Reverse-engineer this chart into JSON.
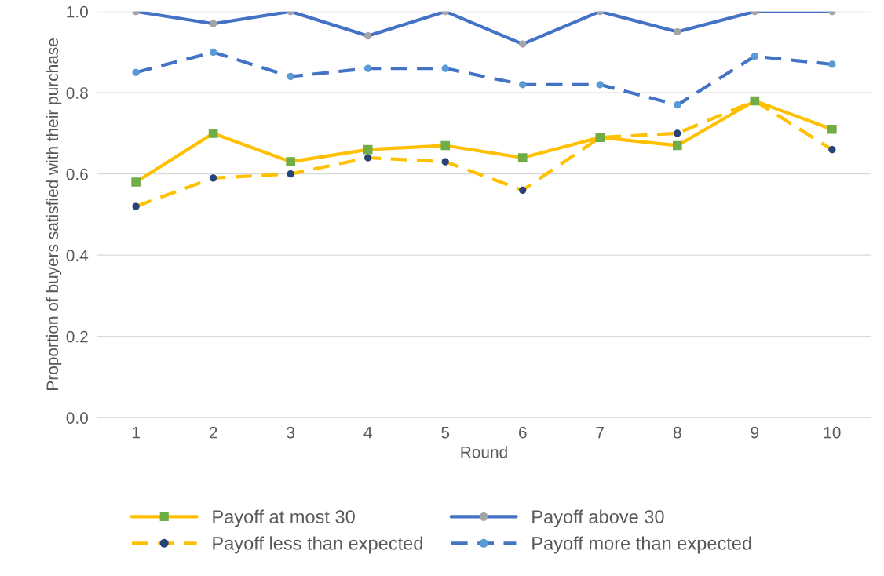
{
  "chart_data": {
    "type": "line",
    "xlabel": "Round",
    "ylabel": "Proportion of buyers satisfied with their purchase",
    "categories": [
      "1",
      "2",
      "3",
      "4",
      "5",
      "6",
      "7",
      "8",
      "9",
      "10"
    ],
    "series": [
      {
        "name": "Payoff at most 30",
        "color": "#ffc000",
        "line_style": "solid",
        "marker": "square",
        "colors": [
          "#70ad47",
          "#70ad47",
          "#70ad47",
          "#70ad47",
          "#70ad47",
          "#70ad47",
          "#70ad47",
          "#70ad47",
          "#70ad47",
          "#70ad47"
        ],
        "values": [
          0.58,
          0.7,
          0.63,
          0.66,
          0.67,
          0.64,
          0.69,
          0.67,
          0.78,
          0.71
        ]
      },
      {
        "name": "Payoff above 30",
        "color": "#4472c4",
        "line_style": "solid",
        "marker": "circle",
        "colors": [
          "#a5a5a5",
          "#a5a5a5",
          "#a5a5a5",
          "#a5a5a5",
          "#a5a5a5",
          "#a5a5a5",
          "#a5a5a5",
          "#a5a5a5",
          "#a5a5a5",
          "#a5a5a5"
        ],
        "values": [
          1.0,
          0.97,
          1.0,
          0.94,
          1.0,
          0.92,
          1.0,
          0.95,
          1.0,
          1.0
        ]
      },
      {
        "name": "Payoff less than expected",
        "color": "#ffc000",
        "line_style": "dashed",
        "marker": "circle",
        "colors": [
          "#264478",
          "#264478",
          "#264478",
          "#264478",
          "#264478",
          "#264478",
          "#264478",
          "#264478",
          "#264478",
          "#264478"
        ],
        "values": [
          0.52,
          0.59,
          0.6,
          0.64,
          0.63,
          0.56,
          0.69,
          0.7,
          0.78,
          0.66
        ]
      },
      {
        "name": "Payoff more than expected",
        "color": "#4472c4",
        "line_style": "dashed",
        "marker": "circle",
        "colors": [
          "#5b9bd5",
          "#5b9bd5",
          "#5b9bd5",
          "#5b9bd5",
          "#5b9bd5",
          "#5b9bd5",
          "#5b9bd5",
          "#5b9bd5",
          "#5b9bd5",
          "#5b9bd5"
        ],
        "values": [
          0.85,
          0.9,
          0.84,
          0.86,
          0.86,
          0.82,
          0.82,
          0.77,
          0.89,
          0.87
        ]
      }
    ],
    "ylim": [
      0,
      1.0
    ],
    "yticks": [
      {
        "value": 0,
        "label": "0.0"
      },
      {
        "value": 0.2,
        "label": "0.2"
      },
      {
        "value": 0.4,
        "label": "0.4"
      },
      {
        "value": 0.6,
        "label": "0.6"
      },
      {
        "value": 0.8,
        "label": "0.8"
      },
      {
        "value": 1.0,
        "label": "1.0"
      }
    ],
    "grid": "y",
    "legend": "bottom"
  }
}
